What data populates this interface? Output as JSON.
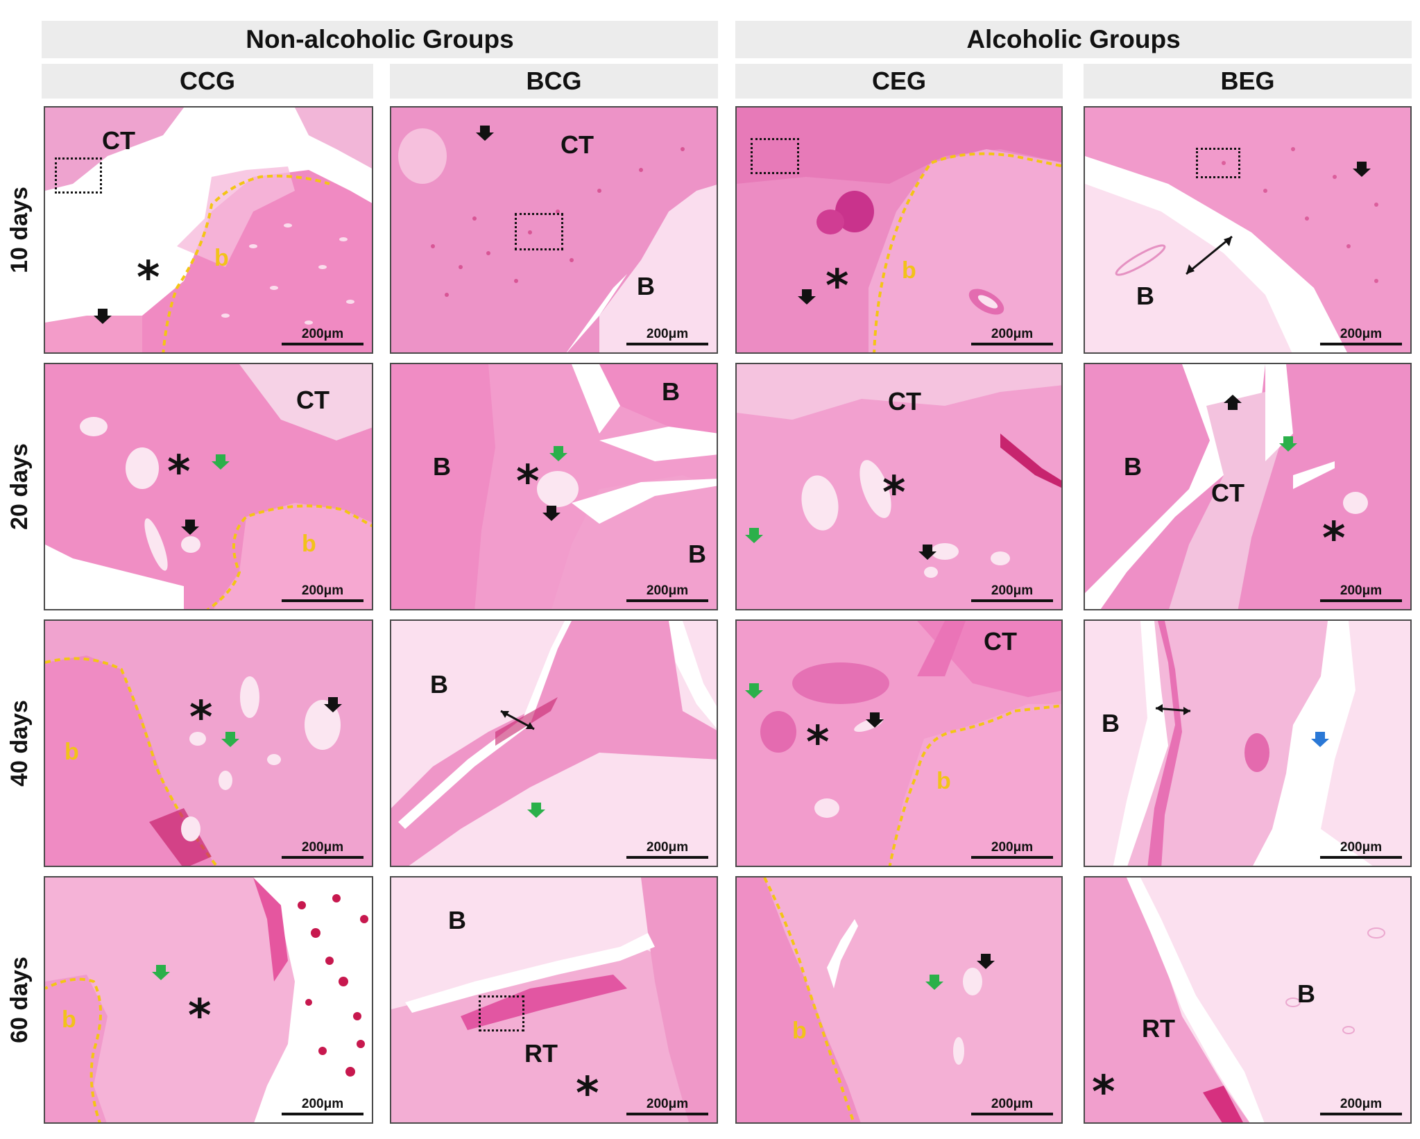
{
  "groups": [
    "Non-alcoholic Groups",
    "Alcoholic Groups"
  ],
  "columns": [
    "CCG",
    "BCG",
    "CEG",
    "BEG"
  ],
  "rows": [
    "10 days",
    "20 days",
    "40 days",
    "60 days"
  ],
  "scale_bar": "200μm",
  "labels": {
    "CT": "CT",
    "B": "B",
    "b": "b",
    "RT": "RT",
    "asterisk": "*"
  },
  "colors": {
    "tissue_pink": "#ee8fc6",
    "bone_pink": "#f3a9d3",
    "light_bone": "#fadcee",
    "blood_red": "#c4184e",
    "boundary_yellow": "#f3c514",
    "arrow_black": "#111111",
    "arrow_green": "#2bb04a",
    "arrow_blue": "#2a78d6"
  },
  "icons": [
    "black-arrow-icon",
    "green-arrow-icon",
    "blue-arrow-icon",
    "double-arrow-icon",
    "dotted-box-icon"
  ]
}
